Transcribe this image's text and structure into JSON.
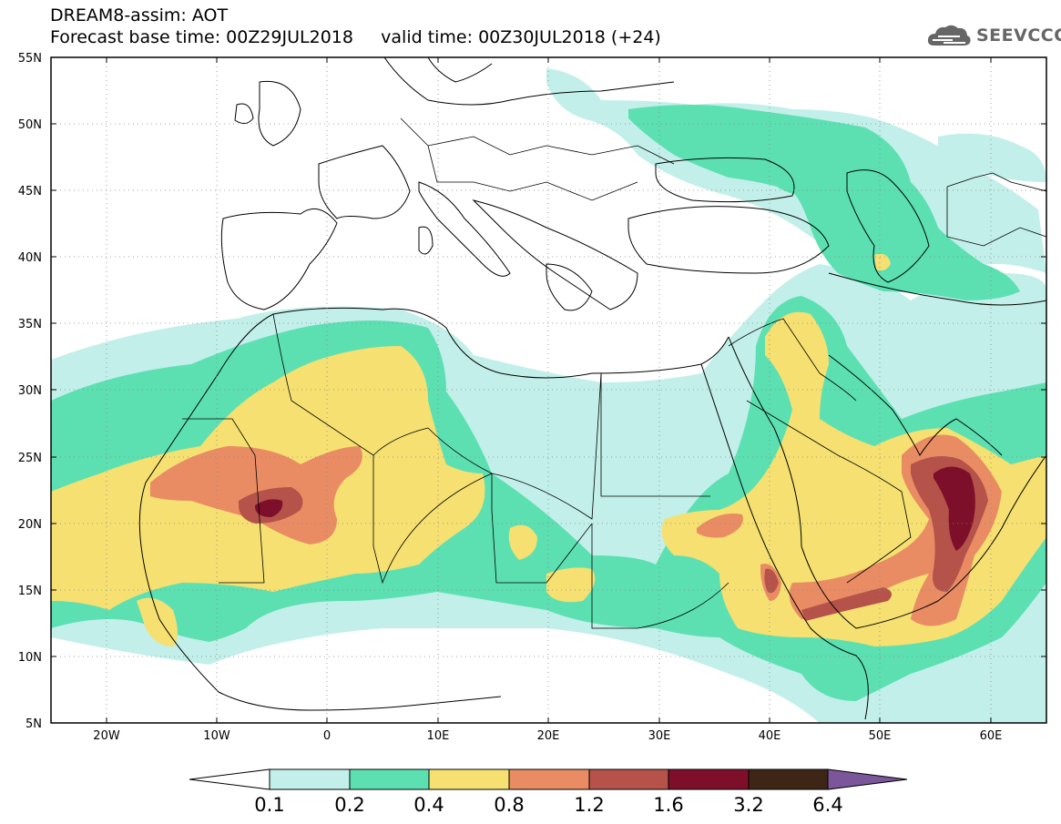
{
  "header": {
    "line1": "DREAM8-assim: AOT",
    "line2": "Forecast base time: 00Z29JUL2018     valid time: 00Z30JUL2018 (+24)"
  },
  "logo": {
    "text": "SEEVCCC",
    "icon": "cloud-icon"
  },
  "map": {
    "lon_range": [
      -25,
      65
    ],
    "lat_range": [
      5,
      55
    ],
    "lat_labels": [
      "55N",
      "50N",
      "45N",
      "40N",
      "35N",
      "30N",
      "25N",
      "20N",
      "15N",
      "10N",
      "5N"
    ],
    "lon_labels": [
      "20W",
      "10W",
      "0",
      "10E",
      "20E",
      "30E",
      "40E",
      "50E",
      "60E"
    ]
  },
  "legend": {
    "levels": [
      "0.1",
      "0.2",
      "0.4",
      "0.8",
      "1.2",
      "1.6",
      "3.2",
      "6.4"
    ],
    "colors": [
      "#ffffff",
      "#c2efe9",
      "#5ce0b2",
      "#f5e071",
      "#e98c64",
      "#b5524a",
      "#7e0f2a",
      "#3e2617",
      "#7b569b"
    ]
  },
  "colors": {
    "c1": "#c2efe9",
    "c2": "#5ce0b2",
    "c3": "#f5e071",
    "c4": "#e98c64",
    "c5": "#b5524a",
    "c6": "#7e0f2a"
  }
}
